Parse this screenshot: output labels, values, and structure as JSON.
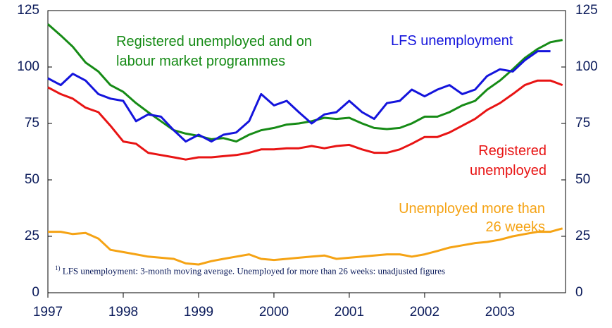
{
  "chart_data": {
    "type": "line",
    "x": [
      1997,
      1997.17,
      1997.33,
      1997.5,
      1997.67,
      1997.83,
      1998,
      1998.17,
      1998.33,
      1998.5,
      1998.67,
      1998.83,
      1999,
      1999.17,
      1999.33,
      1999.5,
      1999.67,
      1999.83,
      2000,
      2000.17,
      2000.33,
      2000.5,
      2000.67,
      2000.83,
      2001,
      2001.17,
      2001.33,
      2001.5,
      2001.67,
      2001.83,
      2002,
      2002.17,
      2002.33,
      2002.5,
      2002.67,
      2002.83,
      2003,
      2003.17,
      2003.33,
      2003.5,
      2003.67,
      2003.83
    ],
    "series": [
      {
        "name": "Registered unemployed and on labour market programmes",
        "color": "#168b16",
        "values": [
          119,
          114,
          109,
          102,
          98,
          92,
          89,
          84,
          80,
          76,
          72,
          70.5,
          69.5,
          68,
          68.5,
          67,
          70,
          72,
          73,
          74.5,
          75,
          76,
          77.5,
          77,
          77.5,
          75,
          73,
          72.5,
          73,
          75,
          78,
          78,
          80,
          83,
          85,
          90,
          94,
          99,
          104,
          108,
          111,
          112
        ]
      },
      {
        "name": "LFS unemployment",
        "color": "#1414dc",
        "values": [
          95,
          92,
          97,
          94,
          88,
          86,
          85,
          76,
          79,
          78,
          72,
          67,
          70,
          67,
          70,
          71,
          76,
          88,
          83,
          85,
          80,
          75,
          79,
          80,
          85,
          80,
          77,
          84,
          85,
          90,
          87,
          90,
          92,
          88,
          90,
          96,
          99,
          98,
          103,
          107,
          107,
          null
        ]
      },
      {
        "name": "Registered unemployed",
        "color": "#e81414",
        "values": [
          91,
          88,
          86,
          82,
          80,
          74,
          67,
          66,
          62,
          61,
          60,
          59,
          60,
          60,
          60.5,
          61,
          62,
          63.5,
          63.5,
          64,
          64,
          65,
          64,
          65,
          65.5,
          63.5,
          62,
          62,
          63.5,
          66,
          69,
          69,
          71,
          74,
          77,
          81,
          84,
          88,
          92,
          94,
          94,
          92
        ]
      },
      {
        "name": "Unemployed more than 26 weeks",
        "color": "#f5a314",
        "values": [
          27,
          27,
          26,
          26.5,
          24,
          19,
          18,
          17,
          16,
          15.5,
          15,
          13,
          12.5,
          14,
          15,
          16,
          17,
          15,
          14.5,
          15,
          15.5,
          16,
          16.5,
          15,
          15.5,
          16,
          16.5,
          17,
          17,
          16,
          17,
          18.5,
          20,
          21,
          22,
          22.5,
          23.5,
          25,
          26,
          27,
          27,
          28.5
        ]
      }
    ],
    "footnote_marker": "1)",
    "footnote": "LFS unemployment: 3-month moving average. Unemployed for more than 26 weeks: unadjusted figures",
    "xlim": [
      1997,
      2003.87
    ],
    "xticks": [
      1997,
      1998,
      1999,
      2000,
      2001,
      2002,
      2003
    ],
    "ylim": [
      0,
      125
    ],
    "yticks": [
      0,
      25,
      50,
      75,
      100,
      125
    ]
  }
}
